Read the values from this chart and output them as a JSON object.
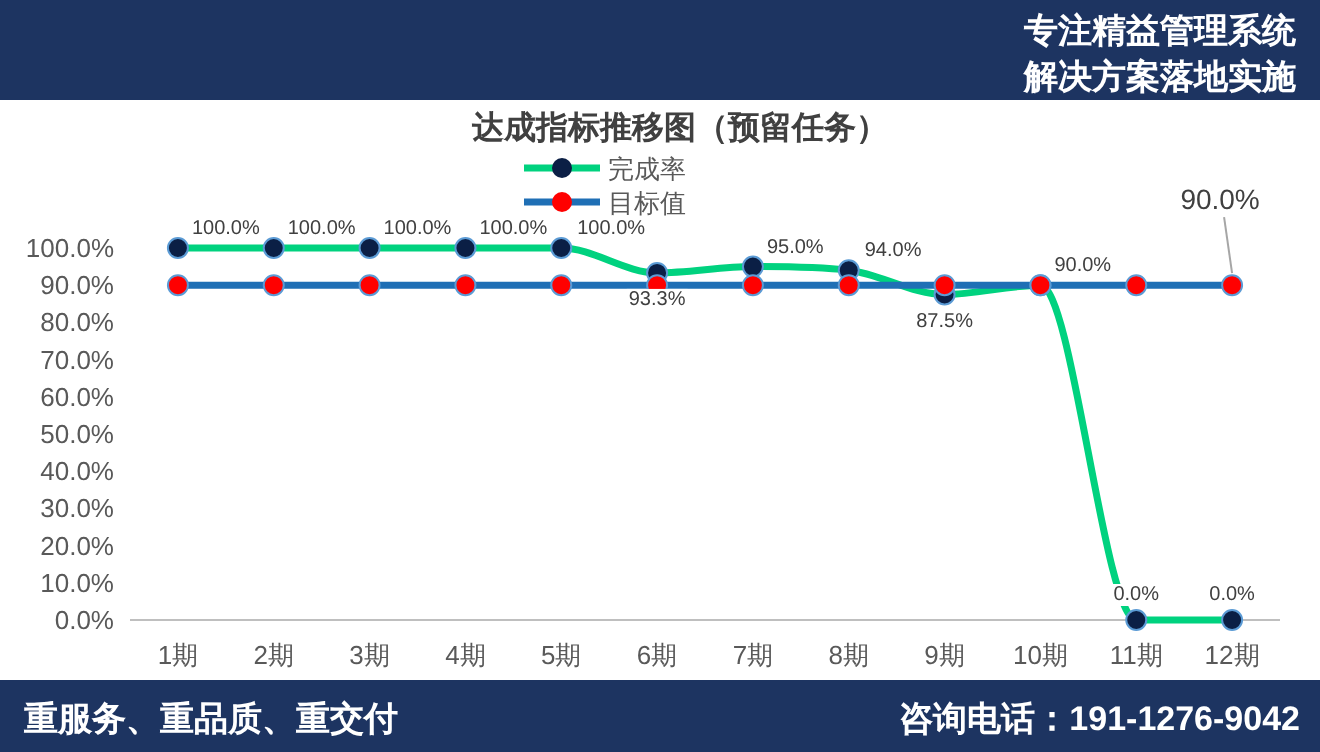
{
  "chart_data": {
    "type": "line",
    "title": "达成指标推移图（预留任务）",
    "categories": [
      "1期",
      "2期",
      "3期",
      "4期",
      "5期",
      "6期",
      "7期",
      "8期",
      "9期",
      "10期",
      "11期",
      "12期"
    ],
    "series": [
      {
        "name": "完成率",
        "color": "#00d27f",
        "colors": [
          "#0b1f45",
          "#0b1f45",
          "#0b1f45",
          "#0b1f45",
          "#0b1f45",
          "#0b1f45",
          "#0b1f45",
          "#0b1f45",
          "#0b1f45",
          "#0b1f45",
          "#0b1f45",
          "#0b1f45"
        ],
        "values": [
          100,
          100,
          100,
          100,
          100,
          93.3,
          95.0,
          94.0,
          87.5,
          90.0,
          0.0,
          0.0
        ],
        "value_labels": [
          "100.0%",
          "100.0%",
          "100.0%",
          "100.0%",
          "100.0%",
          "93.3%",
          "95.0%",
          "94.0%",
          "87.5%",
          "90.0%",
          "0.0%",
          "0.0%"
        ]
      },
      {
        "name": "目标值",
        "color": "#1f6fb5",
        "colors": [
          "#ff0000",
          "#ff0000",
          "#ff0000",
          "#ff0000",
          "#ff0000",
          "#ff0000",
          "#ff0000",
          "#ff0000",
          "#ff0000",
          "#ff0000",
          "#ff0000",
          "#ff0000"
        ],
        "values": [
          90,
          90,
          90,
          90,
          90,
          90,
          90,
          90,
          90,
          90,
          90,
          90
        ],
        "value_labels": [
          null,
          null,
          null,
          null,
          null,
          null,
          null,
          null,
          null,
          null,
          null,
          "90.0%"
        ]
      }
    ],
    "ylim": [
      0,
      100
    ],
    "yticks": [
      {
        "value": 0,
        "label": "0.0%"
      },
      {
        "value": 10,
        "label": "10.0%"
      },
      {
        "value": 20,
        "label": "20.0%"
      },
      {
        "value": 30,
        "label": "30.0%"
      },
      {
        "value": 40,
        "label": "40.0%"
      },
      {
        "value": 50,
        "label": "50.0%"
      },
      {
        "value": 60,
        "label": "60.0%"
      },
      {
        "value": 70,
        "label": "70.0%"
      },
      {
        "value": 80,
        "label": "80.0%"
      },
      {
        "value": 90,
        "label": "90.0%"
      },
      {
        "value": 100,
        "label": "100.0%"
      }
    ],
    "grid": false,
    "legend": "top",
    "marker": "circle",
    "line_style": "solid",
    "annotations": [
      "专注精益管理系统",
      "解决方案落地实施",
      "重服务、重品质、重交付",
      "咨询电话：191-1276-9042"
    ]
  }
}
